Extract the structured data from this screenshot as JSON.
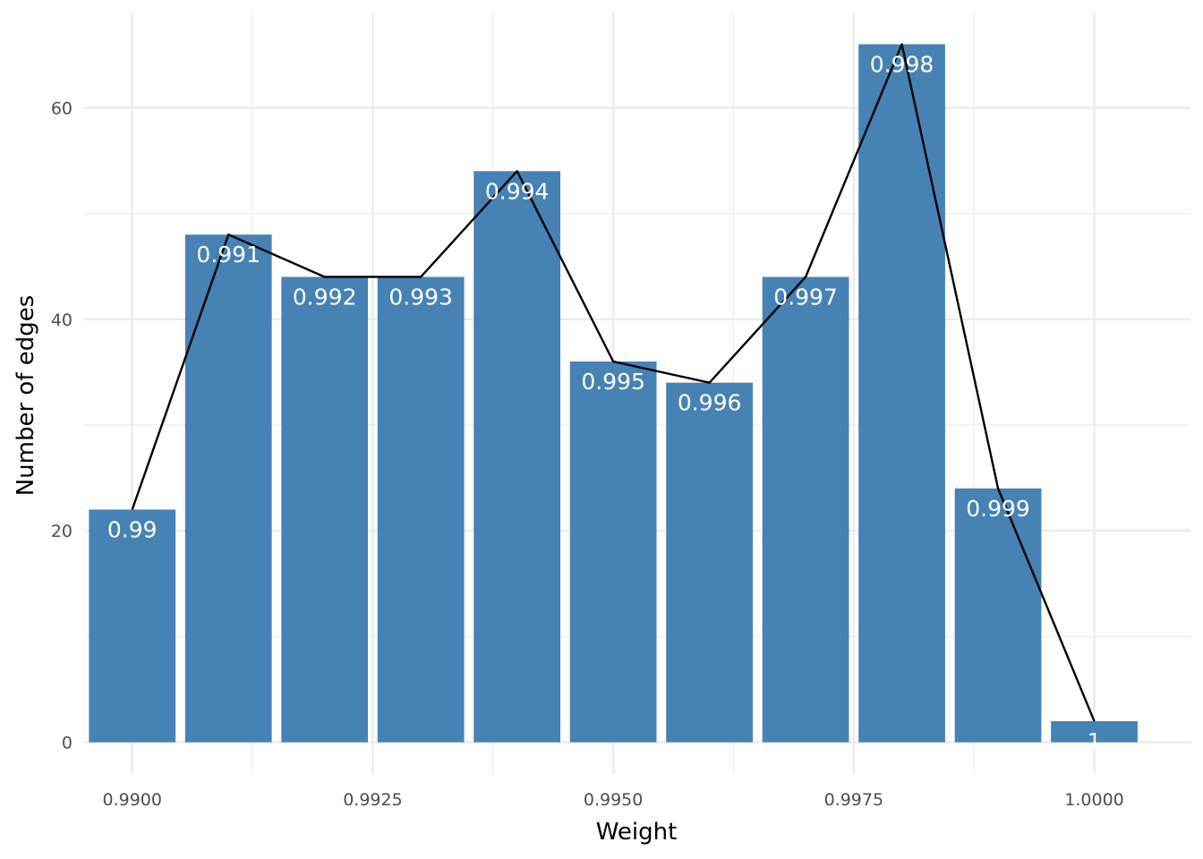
{
  "chart_data": {
    "type": "bar",
    "title": "",
    "xlabel": "Weight",
    "ylabel": "Number of edges",
    "x": [
      0.99,
      0.991,
      0.992,
      0.993,
      0.994,
      0.995,
      0.996,
      0.997,
      0.998,
      0.999,
      1.0
    ],
    "values": [
      22,
      48,
      44,
      44,
      54,
      36,
      34,
      44,
      66,
      24,
      2
    ],
    "bar_labels": [
      "0.99",
      "0.991",
      "0.992",
      "0.993",
      "0.994",
      "0.995",
      "0.996",
      "0.997",
      "0.998",
      "0.999",
      "1"
    ],
    "overlay_line": {
      "type": "line",
      "values": [
        22,
        48,
        44,
        44,
        54,
        36,
        34,
        44,
        66,
        24,
        2
      ],
      "color": "#000000"
    },
    "xlim": [
      0.9895,
      1.001
    ],
    "ylim": [
      -3,
      69
    ],
    "x_ticks": [
      0.99,
      0.9925,
      0.995,
      0.9975,
      1.0
    ],
    "x_tick_labels": [
      "0.9900",
      "0.9925",
      "0.9950",
      "0.9975",
      "1.0000"
    ],
    "y_ticks": [
      0,
      20,
      40,
      60
    ],
    "y_tick_labels": [
      "0",
      "20",
      "40",
      "60"
    ],
    "grid": true,
    "legend": "none",
    "colors": {
      "bar": "#4682b4",
      "line": "#000000",
      "grid": "#ebebeb",
      "bar_label": "#ffffff"
    }
  }
}
